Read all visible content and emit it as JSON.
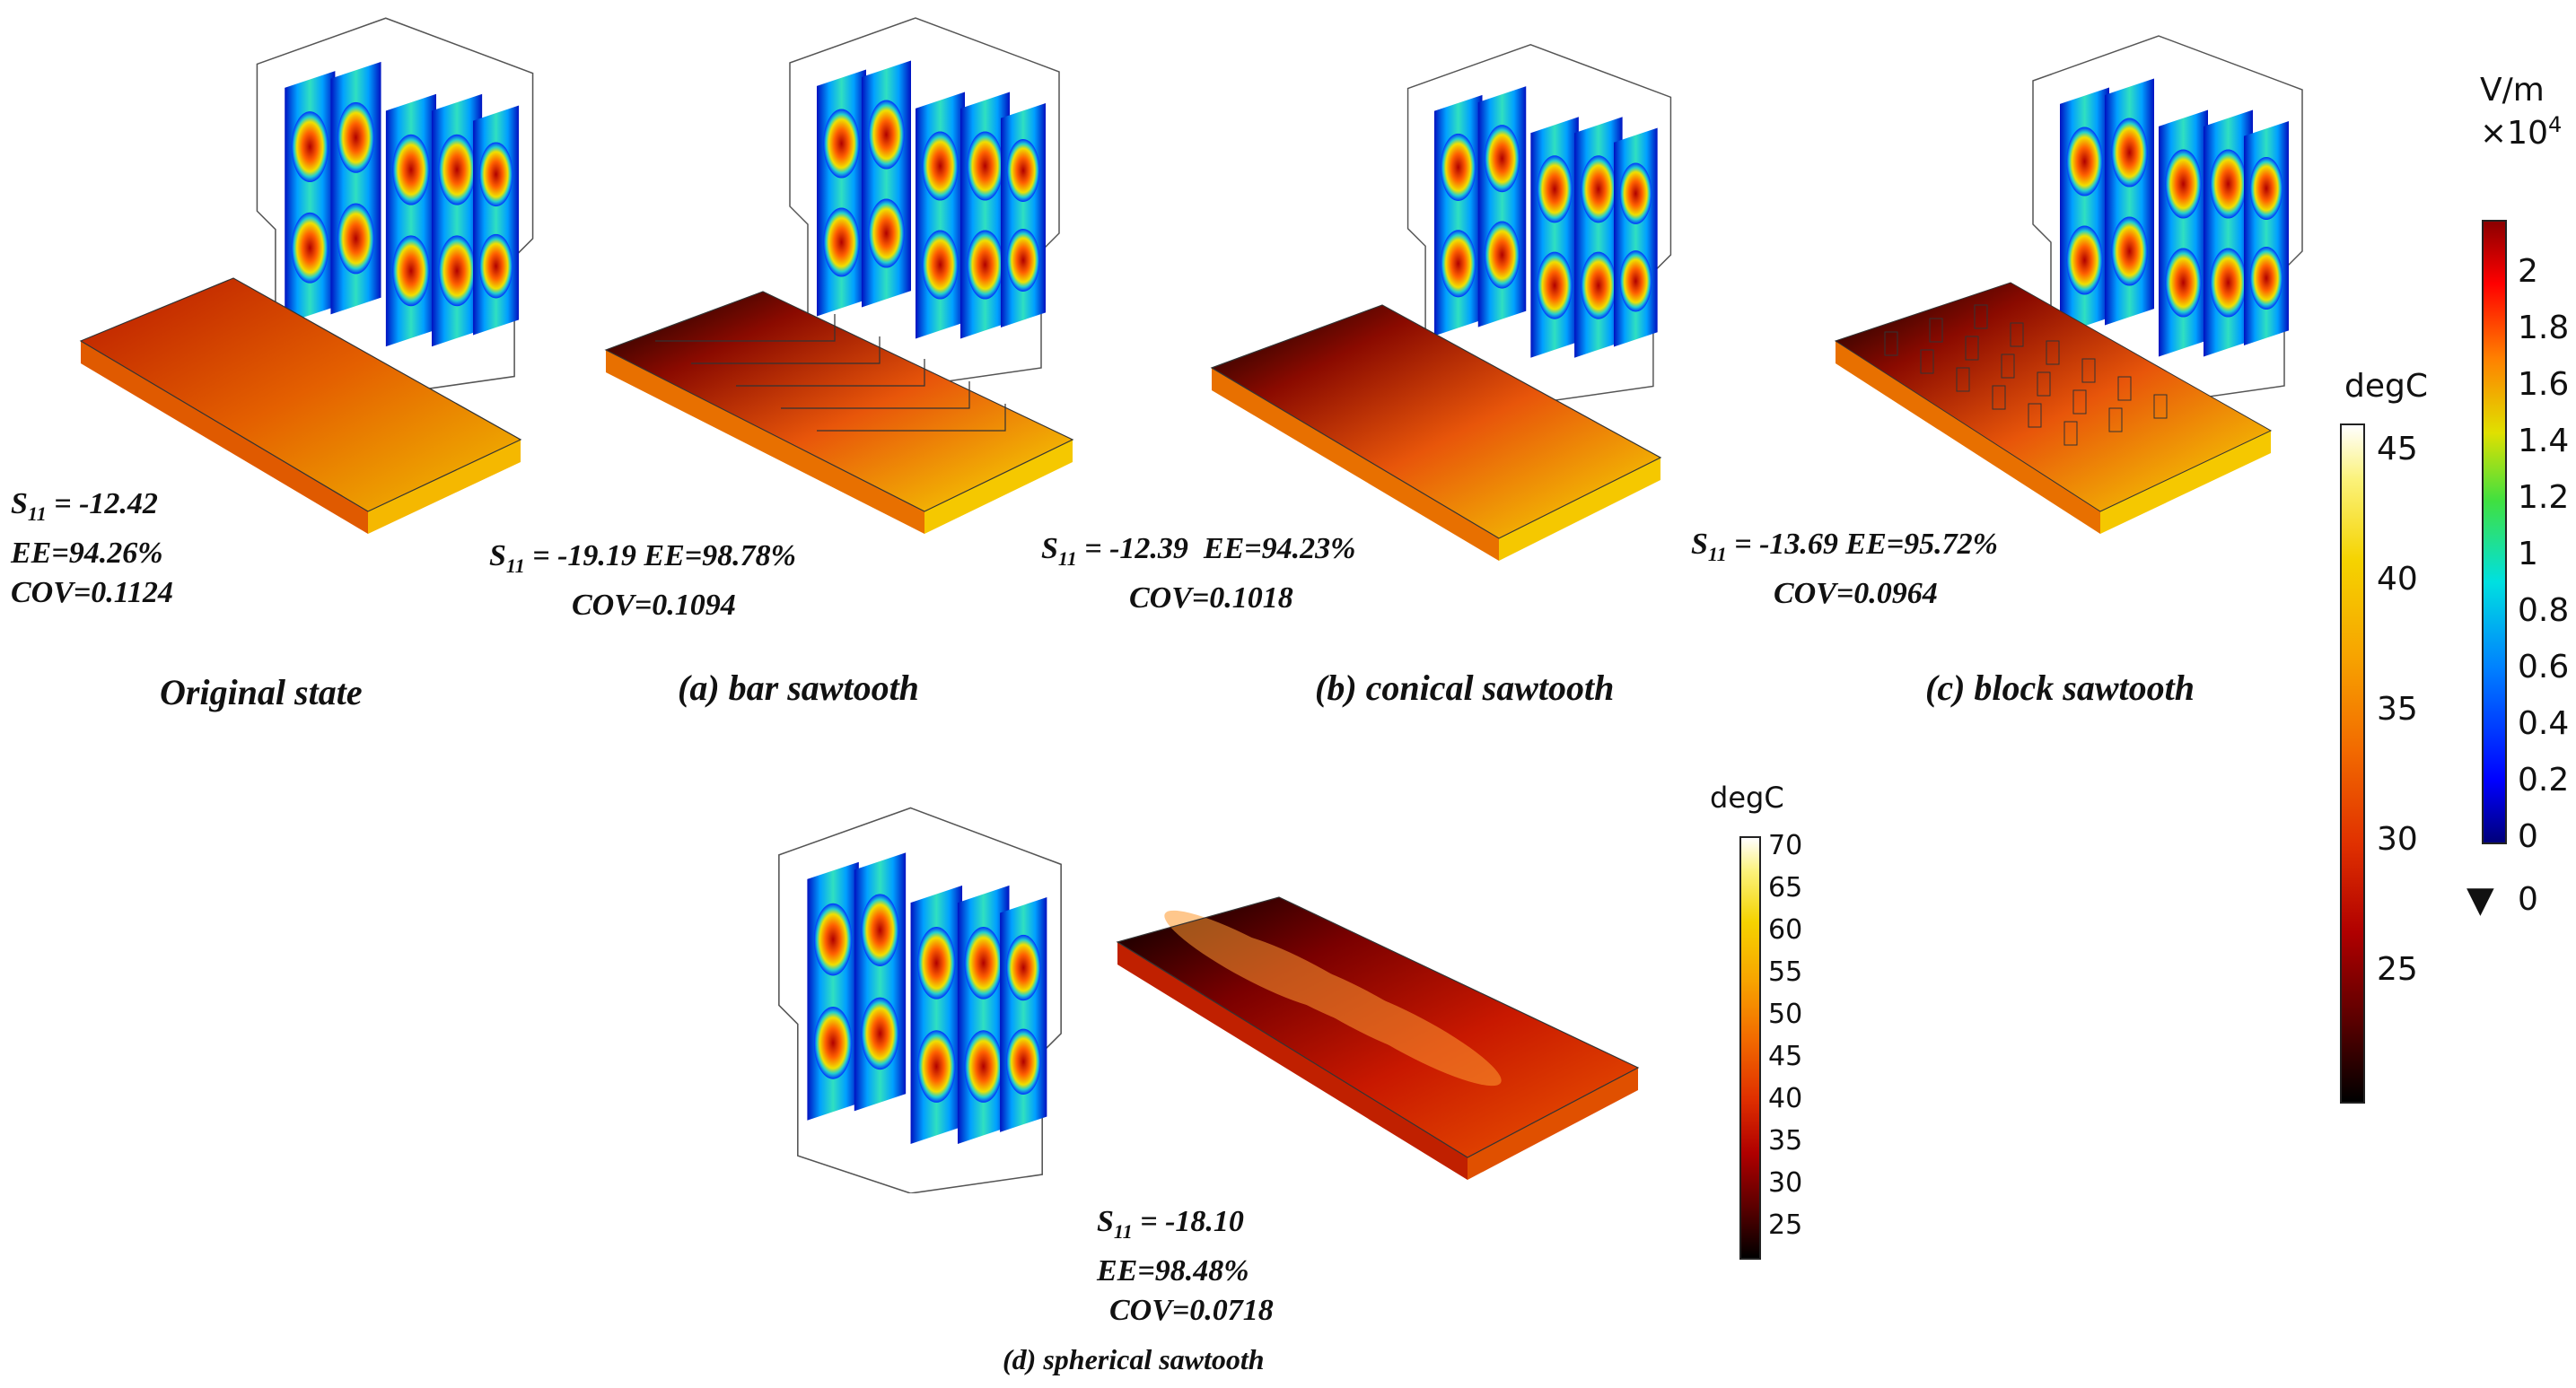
{
  "panels": [
    {
      "id": "original",
      "caption": "Original state",
      "s11_label": "S",
      "s11_sub": "11",
      "s11": "= -12.42",
      "ee": "EE=94.26%",
      "cov": "COV=0.1124"
    },
    {
      "id": "bar",
      "caption": "(a) bar sawtooth",
      "s11_label": "S",
      "s11_sub": "11",
      "s11": "= -19.19",
      "ee": "EE=98.78%",
      "cov": "COV=0.1094"
    },
    {
      "id": "conical",
      "caption": "(b) conical sawtooth",
      "s11_label": "S",
      "s11_sub": "11",
      "s11": "= -12.39",
      "ee": "EE=94.23%",
      "cov": "COV=0.1018"
    },
    {
      "id": "block",
      "caption": "(c) block sawtooth",
      "s11_label": "S",
      "s11_sub": "11",
      "s11": "= -13.69",
      "ee": "EE=95.72%",
      "cov": "COV=0.0964"
    },
    {
      "id": "spherical",
      "caption": "(d) spherical sawtooth",
      "s11_label": "S",
      "s11_sub": "11",
      "s11": "= -18.10",
      "ee": "EE=98.48%",
      "cov": "COV=0.0718"
    }
  ],
  "colorbars": {
    "temp_top": {
      "title": "degC",
      "ticks": [
        "45",
        "40",
        "35",
        "30",
        "25"
      ],
      "range": [
        20,
        46
      ]
    },
    "efield": {
      "title_unit": "V/m",
      "title_scale": "×10",
      "title_exp": "4",
      "ticks": [
        "2",
        "1.8",
        "1.6",
        "1.4",
        "1.2",
        "1",
        "0.8",
        "0.6",
        "0.4",
        "0.2",
        "0"
      ],
      "min_marker": "▼",
      "min_value": "0"
    },
    "temp_bottom": {
      "title": "degC",
      "ticks": [
        "70",
        "65",
        "60",
        "55",
        "50",
        "45",
        "40",
        "35",
        "30",
        "25"
      ],
      "range": [
        21,
        71
      ]
    }
  },
  "colors": {
    "thermal": [
      "#000000",
      "#5a0000",
      "#b00000",
      "#e03000",
      "#f26a00",
      "#f7a400",
      "#f5d300",
      "#fbf27a",
      "#ffffff"
    ],
    "rainbow": [
      "#00007a",
      "#0000ff",
      "#0080ff",
      "#00e0e0",
      "#40e040",
      "#e0e000",
      "#ff8000",
      "#ff0000",
      "#8b0000"
    ]
  }
}
